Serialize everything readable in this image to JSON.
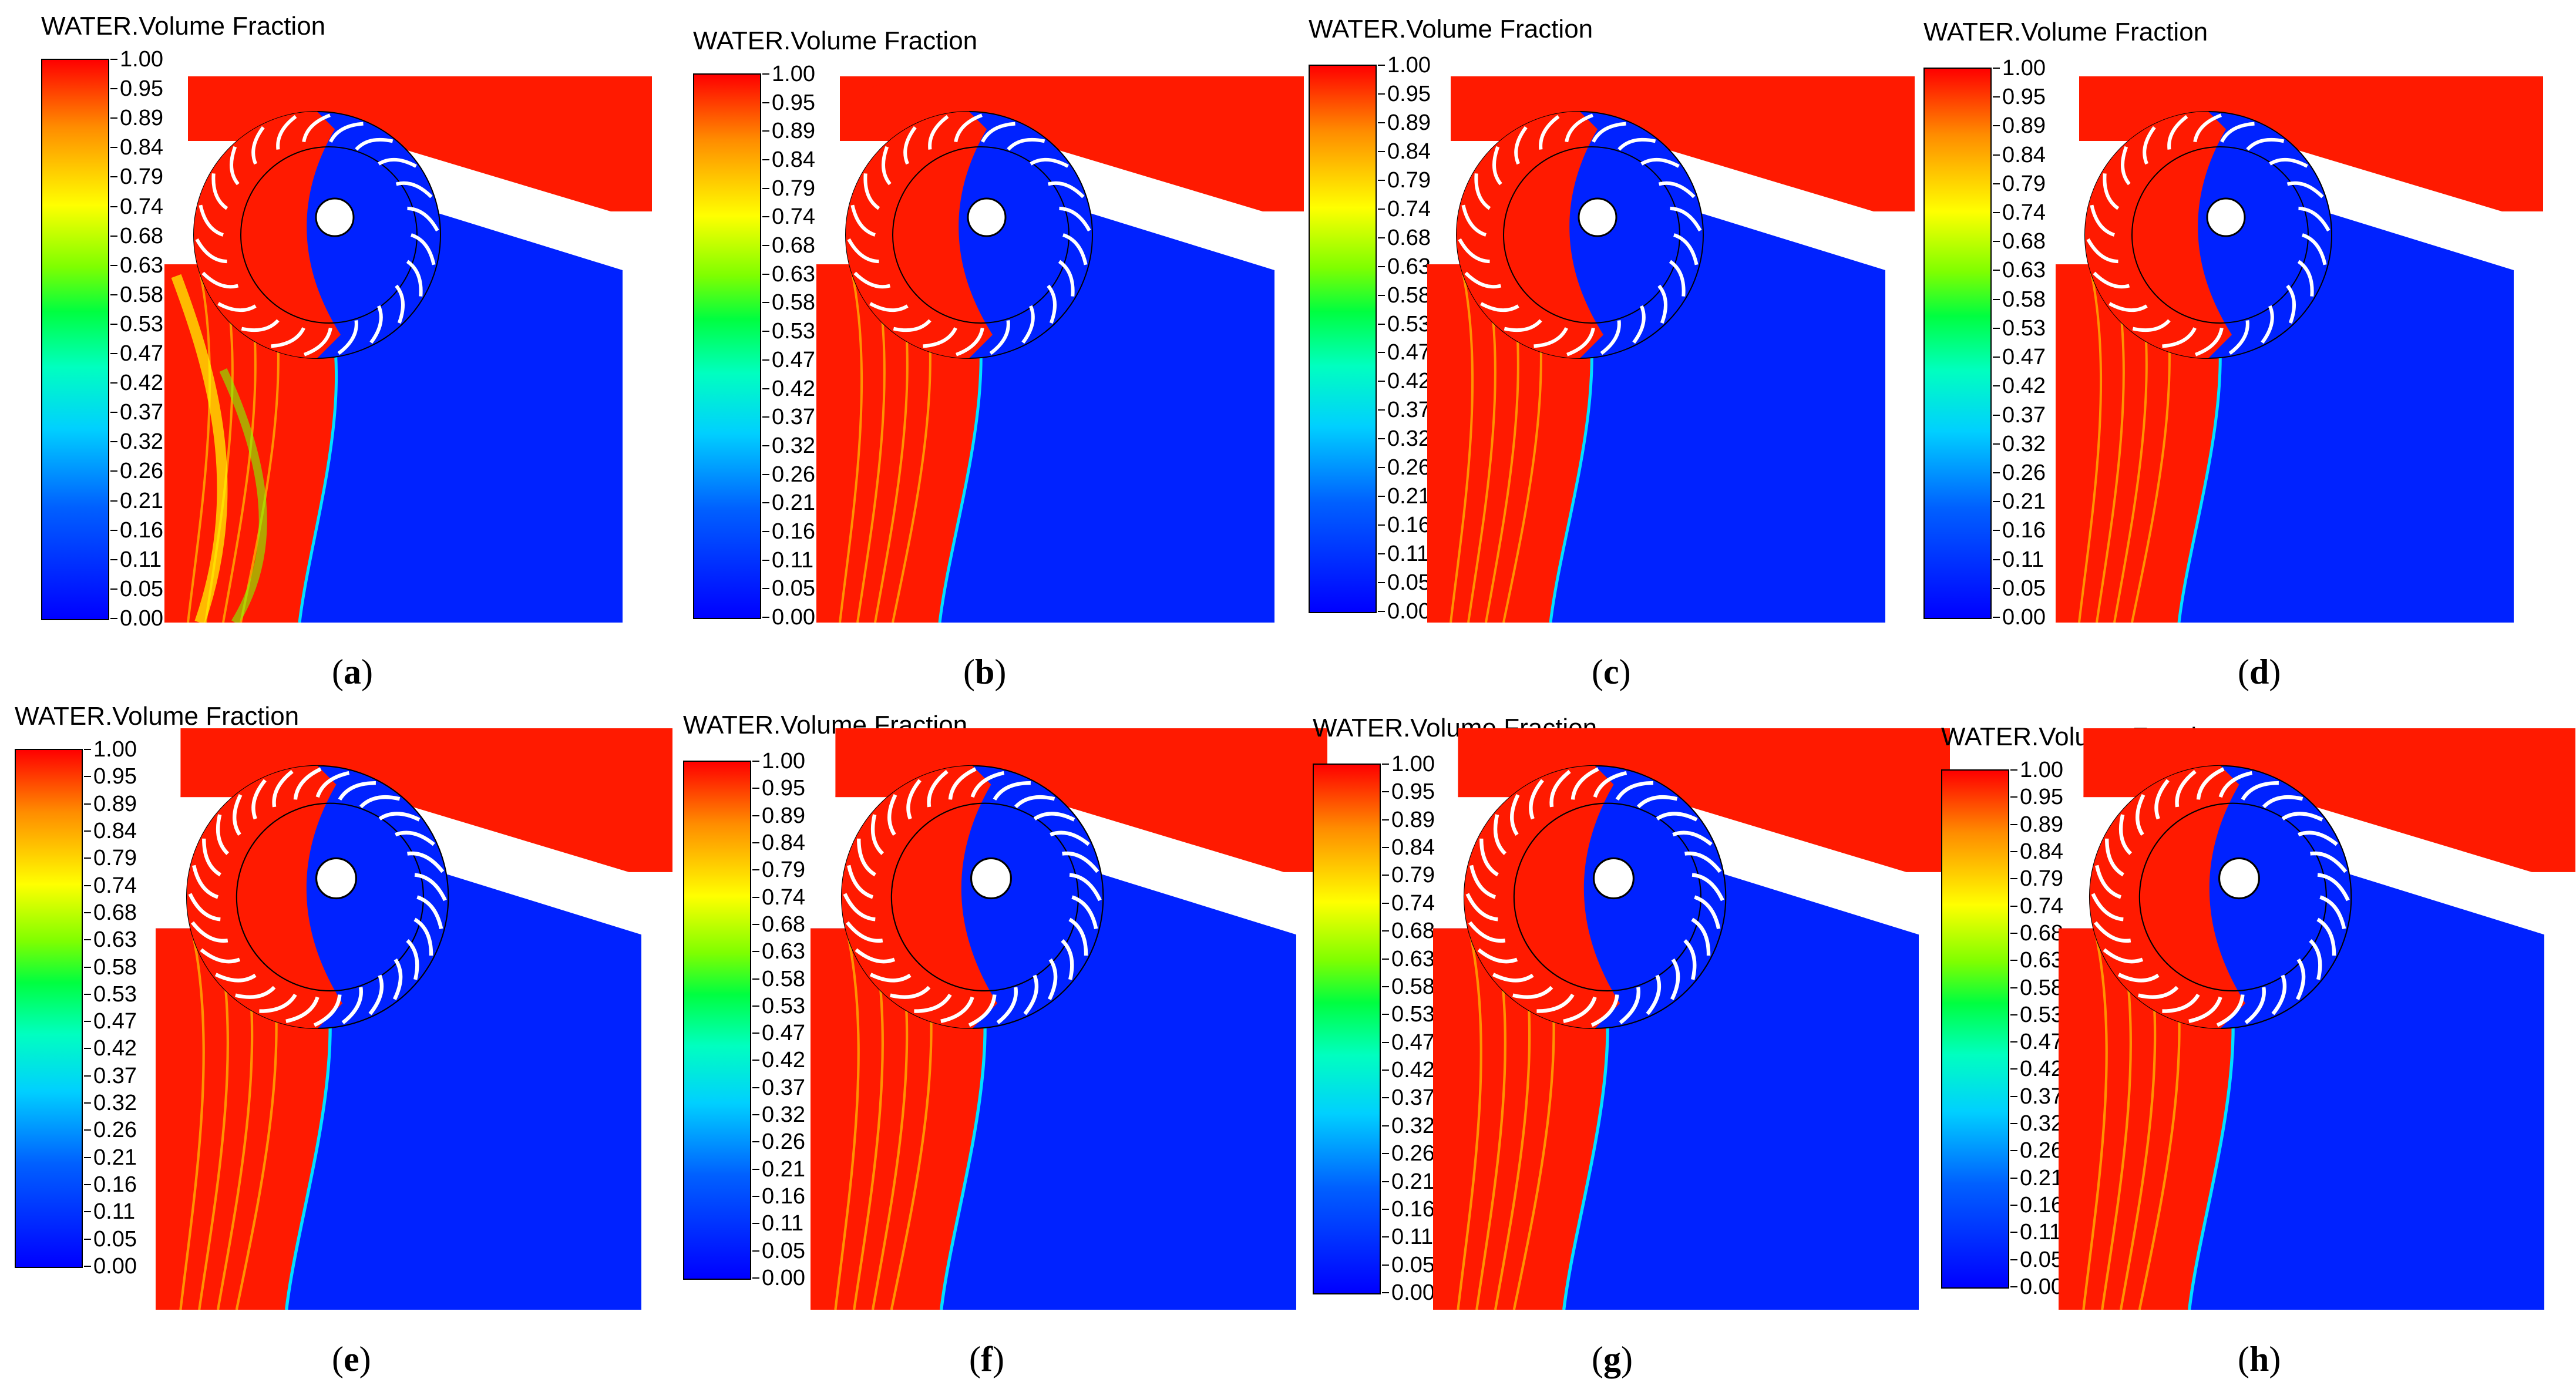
{
  "colorbar": {
    "title": "WATER.Volume Fraction",
    "ticks": [
      "1.00",
      "0.95",
      "0.89",
      "0.84",
      "0.79",
      "0.74",
      "0.68",
      "0.63",
      "0.58",
      "0.53",
      "0.47",
      "0.42",
      "0.37",
      "0.32",
      "0.26",
      "0.21",
      "0.16",
      "0.11",
      "0.05",
      "0.00"
    ]
  },
  "colors": {
    "water": "#ff1a00",
    "air": "#0022ff",
    "interface": "#00e0ff"
  },
  "panels": [
    {
      "label": "a"
    },
    {
      "label": "b"
    },
    {
      "label": "c"
    },
    {
      "label": "d"
    },
    {
      "label": "e"
    },
    {
      "label": "f"
    },
    {
      "label": "g"
    },
    {
      "label": "h"
    }
  ]
}
